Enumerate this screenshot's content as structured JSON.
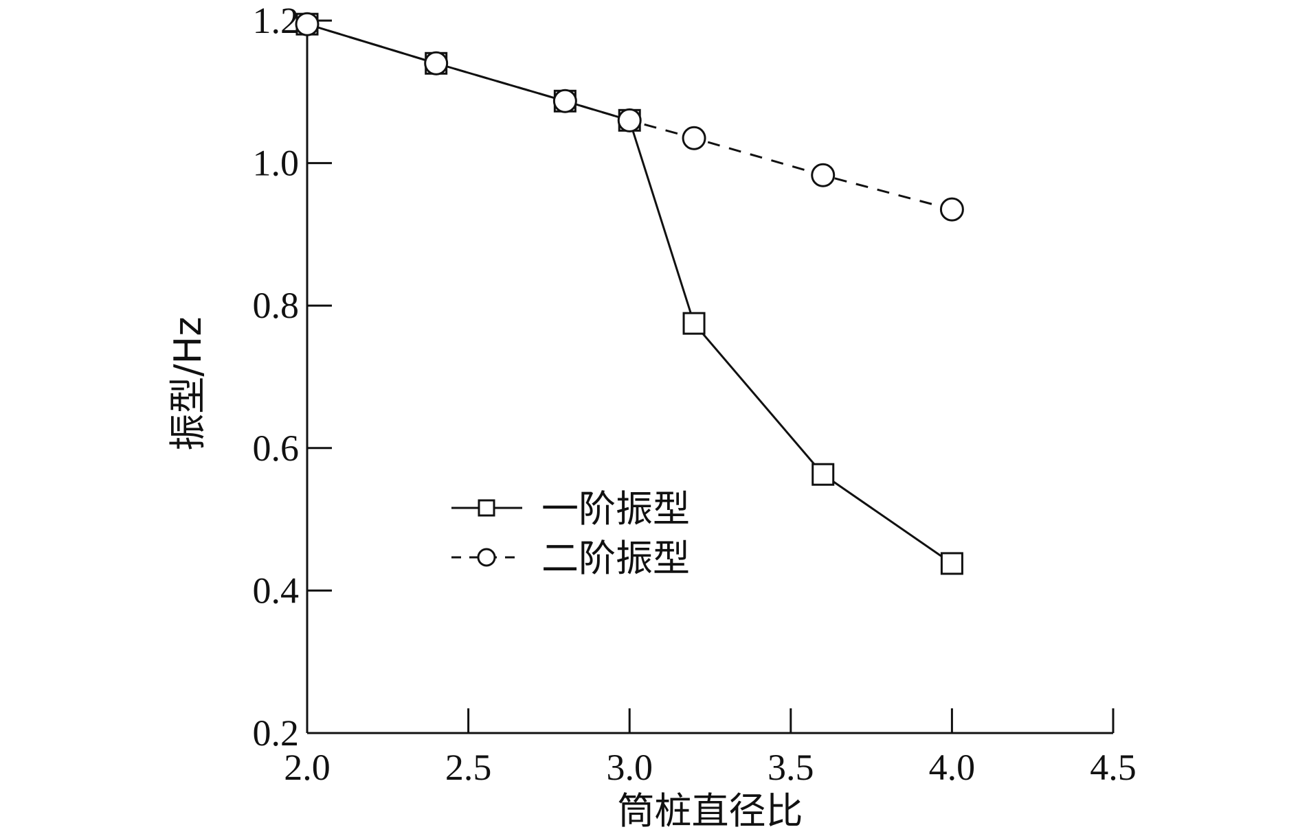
{
  "chart_data": {
    "type": "line",
    "title": "",
    "xlabel": "筒桩直径比",
    "ylabel": "振型/Hz",
    "xlim": [
      2.0,
      4.5
    ],
    "ylim": [
      0.2,
      1.2
    ],
    "x_ticks": [
      "2.0",
      "2.5",
      "3.0",
      "3.5",
      "4.0",
      "4.5"
    ],
    "y_ticks": [
      "0.2",
      "0.4",
      "0.6",
      "0.8",
      "1.0",
      "1.2"
    ],
    "grid": false,
    "legend_position": "center",
    "series": [
      {
        "name": "一阶振型",
        "marker": "square",
        "line_style": "solid",
        "x": [
          2.0,
          2.4,
          2.8,
          3.0,
          3.2,
          3.6,
          4.0
        ],
        "y": [
          1.195,
          1.14,
          1.087,
          1.06,
          0.775,
          0.563,
          0.438
        ]
      },
      {
        "name": "二阶振型",
        "marker": "circle",
        "line_style": "dashed",
        "x": [
          2.0,
          2.4,
          2.8,
          3.0,
          3.2,
          3.6,
          4.0
        ],
        "y": [
          1.195,
          1.14,
          1.087,
          1.06,
          1.035,
          0.983,
          0.935
        ]
      }
    ],
    "colors": {
      "line": "#111111",
      "background": "#ffffff"
    }
  }
}
